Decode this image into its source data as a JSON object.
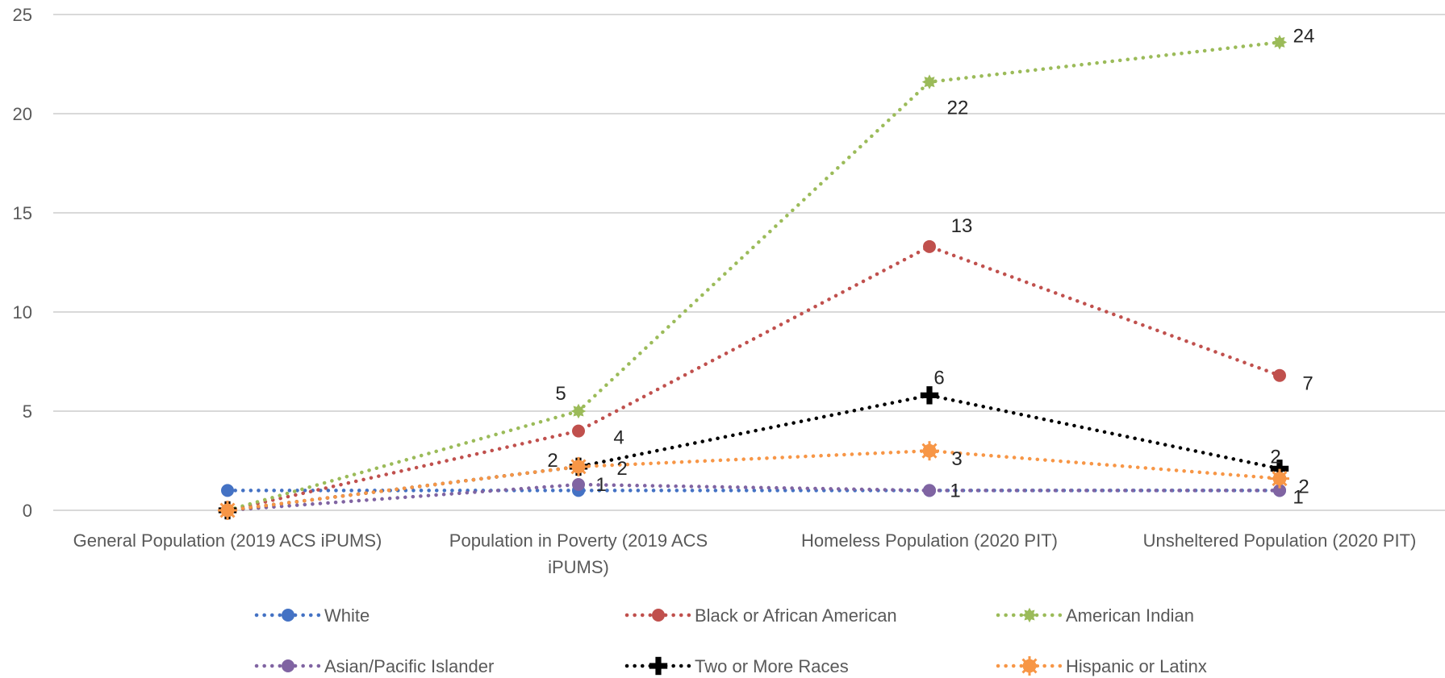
{
  "chart_data": {
    "type": "line",
    "title": "",
    "xlabel": "",
    "ylabel": "",
    "ylim": [
      0,
      25
    ],
    "yticks": [
      0,
      5,
      10,
      15,
      20,
      25
    ],
    "grid": true,
    "legend_position": "bottom",
    "categories": [
      [
        "General Population (2019 ACS iPUMS)"
      ],
      [
        "Population in Poverty (2019 ACS",
        "iPUMS)"
      ],
      [
        "Homeless Population (2020 PIT)"
      ],
      [
        "Unsheltered Population (2020 PIT)"
      ]
    ],
    "series": [
      {
        "name": "White",
        "color": "#4472C4",
        "marker": "circle",
        "values": [
          1,
          1,
          1,
          1
        ],
        "labels": [
          "",
          "",
          "",
          ""
        ]
      },
      {
        "name": "Black or African American",
        "color": "#C0504D",
        "marker": "circle",
        "values": [
          0,
          4,
          13.3,
          6.8
        ],
        "labels": [
          "",
          "4",
          "13",
          "7"
        ]
      },
      {
        "name": "American Indian",
        "color": "#9BBB59",
        "marker": "star",
        "values": [
          0,
          5,
          21.6,
          23.6
        ],
        "labels": [
          "",
          "5",
          "22",
          "24"
        ]
      },
      {
        "name": "Asian/Pacific Islander",
        "color": "#8064A2",
        "marker": "circle",
        "values": [
          0,
          1.3,
          1,
          1
        ],
        "labels": [
          "",
          "1",
          "1",
          "1"
        ]
      },
      {
        "name": "Two or More Races",
        "color": "#000000",
        "marker": "plus",
        "values": [
          0,
          2.2,
          5.8,
          2.1
        ],
        "labels": [
          "",
          "2",
          "6",
          "2"
        ]
      },
      {
        "name": "Hispanic or Latinx",
        "color": "#F79646",
        "marker": "sunburst",
        "values": [
          0,
          2.2,
          3,
          1.6
        ],
        "labels": [
          "",
          "2",
          "3",
          "2"
        ]
      }
    ]
  }
}
